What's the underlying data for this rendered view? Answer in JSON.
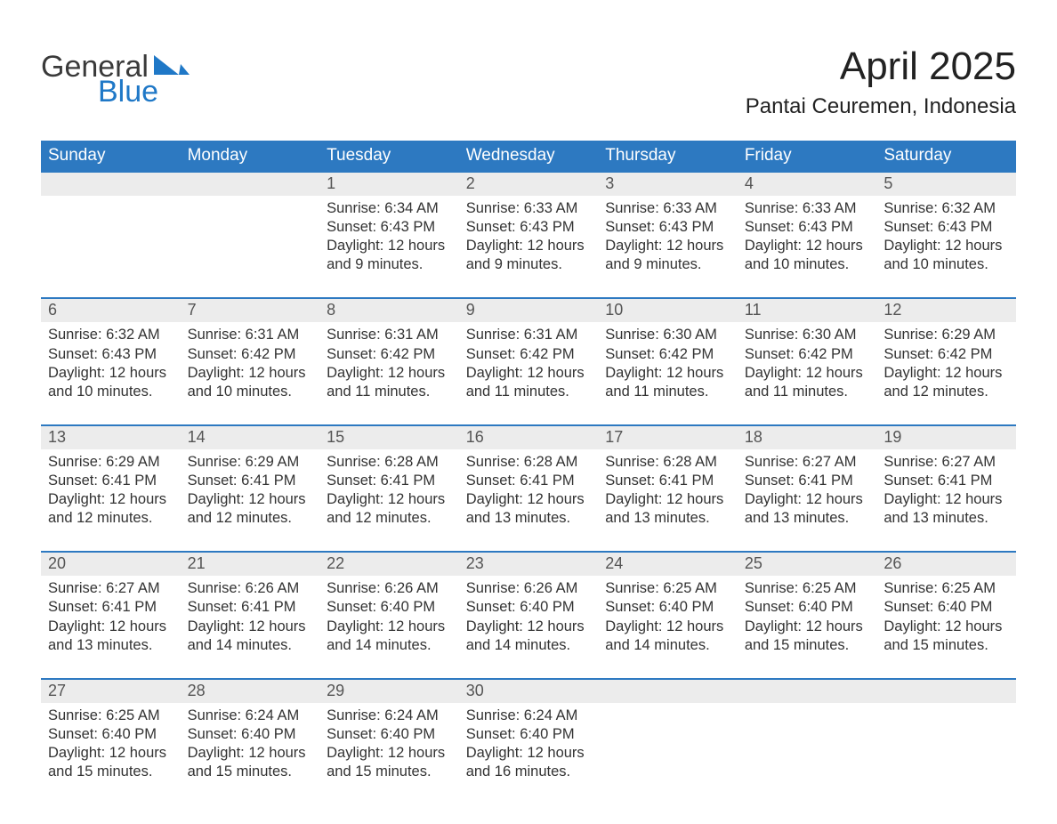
{
  "brand": {
    "word1": "General",
    "word2": "Blue",
    "text_color": "#3a3a3a",
    "accent_color": "#1f78c7"
  },
  "title": "April 2025",
  "location": "Pantai Ceuremen, Indonesia",
  "colors": {
    "header_bg": "#2d79c1",
    "header_text": "#ffffff",
    "daybar_bg": "#ececec",
    "day_text": "#555555",
    "body_text": "#333333",
    "rule": "#2d79c1",
    "page_bg": "#ffffff"
  },
  "weekdays": [
    "Sunday",
    "Monday",
    "Tuesday",
    "Wednesday",
    "Thursday",
    "Friday",
    "Saturday"
  ],
  "weeks": [
    [
      null,
      null,
      {
        "d": "1",
        "sr": "6:34 AM",
        "ss": "6:43 PM",
        "dl": "12 hours and 9 minutes."
      },
      {
        "d": "2",
        "sr": "6:33 AM",
        "ss": "6:43 PM",
        "dl": "12 hours and 9 minutes."
      },
      {
        "d": "3",
        "sr": "6:33 AM",
        "ss": "6:43 PM",
        "dl": "12 hours and 9 minutes."
      },
      {
        "d": "4",
        "sr": "6:33 AM",
        "ss": "6:43 PM",
        "dl": "12 hours and 10 minutes."
      },
      {
        "d": "5",
        "sr": "6:32 AM",
        "ss": "6:43 PM",
        "dl": "12 hours and 10 minutes."
      }
    ],
    [
      {
        "d": "6",
        "sr": "6:32 AM",
        "ss": "6:43 PM",
        "dl": "12 hours and 10 minutes."
      },
      {
        "d": "7",
        "sr": "6:31 AM",
        "ss": "6:42 PM",
        "dl": "12 hours and 10 minutes."
      },
      {
        "d": "8",
        "sr": "6:31 AM",
        "ss": "6:42 PM",
        "dl": "12 hours and 11 minutes."
      },
      {
        "d": "9",
        "sr": "6:31 AM",
        "ss": "6:42 PM",
        "dl": "12 hours and 11 minutes."
      },
      {
        "d": "10",
        "sr": "6:30 AM",
        "ss": "6:42 PM",
        "dl": "12 hours and 11 minutes."
      },
      {
        "d": "11",
        "sr": "6:30 AM",
        "ss": "6:42 PM",
        "dl": "12 hours and 11 minutes."
      },
      {
        "d": "12",
        "sr": "6:29 AM",
        "ss": "6:42 PM",
        "dl": "12 hours and 12 minutes."
      }
    ],
    [
      {
        "d": "13",
        "sr": "6:29 AM",
        "ss": "6:41 PM",
        "dl": "12 hours and 12 minutes."
      },
      {
        "d": "14",
        "sr": "6:29 AM",
        "ss": "6:41 PM",
        "dl": "12 hours and 12 minutes."
      },
      {
        "d": "15",
        "sr": "6:28 AM",
        "ss": "6:41 PM",
        "dl": "12 hours and 12 minutes."
      },
      {
        "d": "16",
        "sr": "6:28 AM",
        "ss": "6:41 PM",
        "dl": "12 hours and 13 minutes."
      },
      {
        "d": "17",
        "sr": "6:28 AM",
        "ss": "6:41 PM",
        "dl": "12 hours and 13 minutes."
      },
      {
        "d": "18",
        "sr": "6:27 AM",
        "ss": "6:41 PM",
        "dl": "12 hours and 13 minutes."
      },
      {
        "d": "19",
        "sr": "6:27 AM",
        "ss": "6:41 PM",
        "dl": "12 hours and 13 minutes."
      }
    ],
    [
      {
        "d": "20",
        "sr": "6:27 AM",
        "ss": "6:41 PM",
        "dl": "12 hours and 13 minutes."
      },
      {
        "d": "21",
        "sr": "6:26 AM",
        "ss": "6:41 PM",
        "dl": "12 hours and 14 minutes."
      },
      {
        "d": "22",
        "sr": "6:26 AM",
        "ss": "6:40 PM",
        "dl": "12 hours and 14 minutes."
      },
      {
        "d": "23",
        "sr": "6:26 AM",
        "ss": "6:40 PM",
        "dl": "12 hours and 14 minutes."
      },
      {
        "d": "24",
        "sr": "6:25 AM",
        "ss": "6:40 PM",
        "dl": "12 hours and 14 minutes."
      },
      {
        "d": "25",
        "sr": "6:25 AM",
        "ss": "6:40 PM",
        "dl": "12 hours and 15 minutes."
      },
      {
        "d": "26",
        "sr": "6:25 AM",
        "ss": "6:40 PM",
        "dl": "12 hours and 15 minutes."
      }
    ],
    [
      {
        "d": "27",
        "sr": "6:25 AM",
        "ss": "6:40 PM",
        "dl": "12 hours and 15 minutes."
      },
      {
        "d": "28",
        "sr": "6:24 AM",
        "ss": "6:40 PM",
        "dl": "12 hours and 15 minutes."
      },
      {
        "d": "29",
        "sr": "6:24 AM",
        "ss": "6:40 PM",
        "dl": "12 hours and 15 minutes."
      },
      {
        "d": "30",
        "sr": "6:24 AM",
        "ss": "6:40 PM",
        "dl": "12 hours and 16 minutes."
      },
      null,
      null,
      null
    ]
  ],
  "labels": {
    "sunrise": "Sunrise: ",
    "sunset": "Sunset: ",
    "daylight": "Daylight: "
  }
}
